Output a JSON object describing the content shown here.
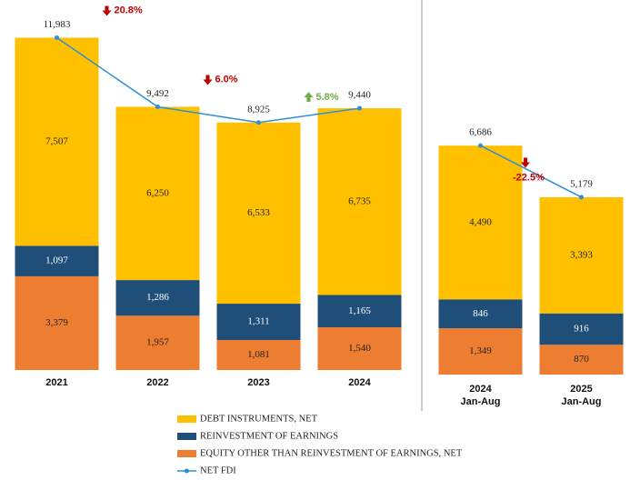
{
  "chart_data": [
    {
      "type": "bar",
      "stacked": true,
      "categories": [
        [
          "2021"
        ],
        [
          "2022"
        ],
        [
          "2023"
        ],
        [
          "2024"
        ]
      ],
      "ylim": [
        0,
        13000
      ],
      "series": [
        {
          "name": "EQUITY OTHER THAN REINVESTMENT OF EARNINGS, NET",
          "color": "#ed7d31",
          "values": [
            3379,
            1957,
            1081,
            1540
          ],
          "value_labels": [
            "3,379",
            "1,957",
            "1,081",
            "1,540"
          ]
        },
        {
          "name": "REINVESTMENT OF EARNINGS",
          "color": "#1f4e79",
          "values": [
            1097,
            1286,
            1311,
            1165
          ],
          "value_labels": [
            "1,097",
            "1,286",
            "1,311",
            "1,165"
          ]
        },
        {
          "name": "DEBT INSTRUMENTS, NET",
          "color": "#ffc000",
          "values": [
            7507,
            6250,
            6533,
            6735
          ],
          "value_labels": [
            "7,507",
            "6,250",
            "6,533",
            "6,735"
          ]
        },
        {
          "name": "NET FDI",
          "type": "line",
          "color": "#2e8fd6",
          "values": [
            11983,
            9492,
            8925,
            9440
          ],
          "value_labels": [
            "11,983",
            "9,492",
            "8,925",
            "9,440"
          ]
        }
      ],
      "annotations": [
        {
          "text": "20.8%",
          "direction": "down",
          "color": "#c00000"
        },
        {
          "text": "6.0%",
          "direction": "down",
          "color": "#c00000"
        },
        {
          "text": "5.8%",
          "direction": "up",
          "color": "#70ad47"
        }
      ]
    },
    {
      "type": "bar",
      "stacked": true,
      "categories": [
        [
          "2024",
          "Jan-Aug"
        ],
        [
          "2025",
          "Jan-Aug"
        ]
      ],
      "ylim": [
        0,
        9000
      ],
      "series": [
        {
          "color": "#ed7d31",
          "values": [
            1349,
            870
          ],
          "value_labels": [
            "1,349",
            "870"
          ]
        },
        {
          "color": "#1f4e79",
          "values": [
            846,
            916
          ],
          "value_labels": [
            "846",
            "916"
          ]
        },
        {
          "color": "#ffc000",
          "values": [
            4490,
            3393
          ],
          "value_labels": [
            "4,490",
            "3,393"
          ]
        },
        {
          "type": "line",
          "color": "#2e8fd6",
          "values": [
            6686,
            5179
          ],
          "value_labels": [
            "6,686",
            "5,179"
          ]
        }
      ],
      "annotations": [
        {
          "text": "-22.5%",
          "direction": "down",
          "color": "#c00000"
        }
      ]
    }
  ]
}
